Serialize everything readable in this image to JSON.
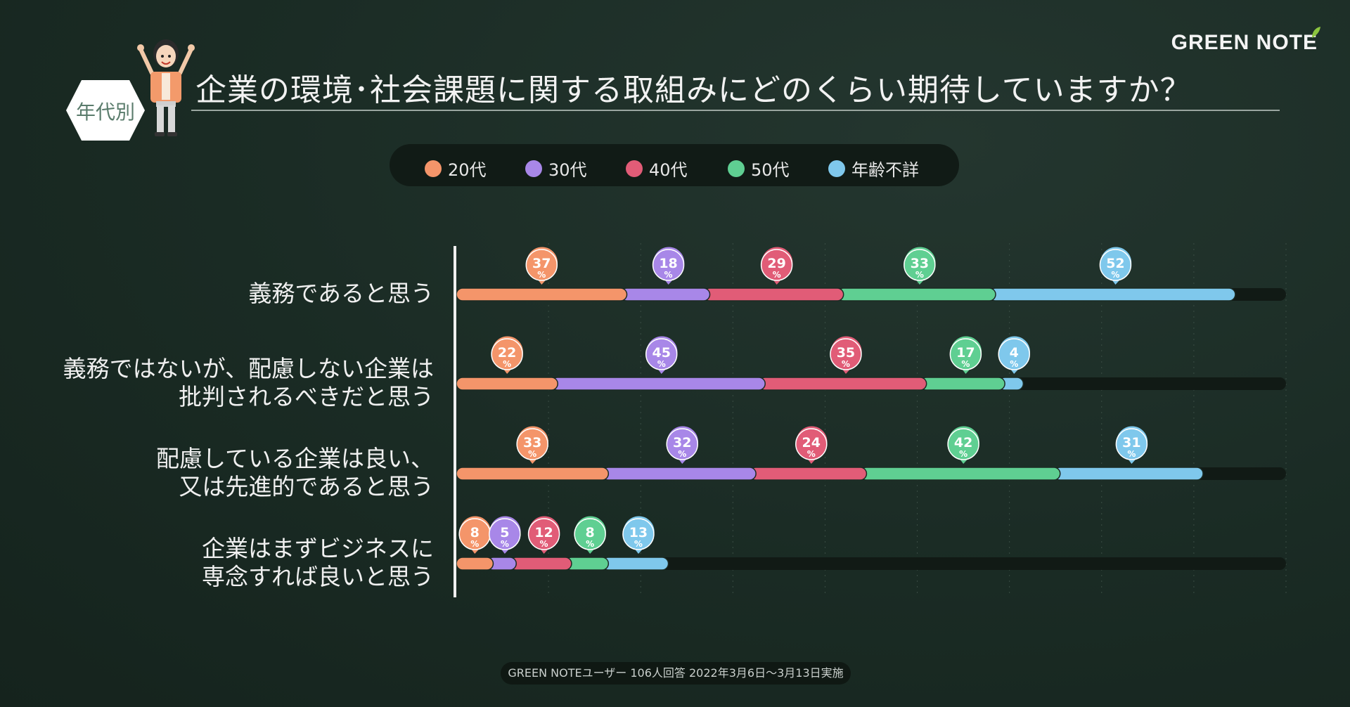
{
  "header": {
    "logo": "GREEN NOTE",
    "category_badge": "年代別",
    "title": "企業の環境･社会課題に関する取組みにどのくらい期待していますか？"
  },
  "legend": [
    {
      "label": "20代",
      "color": "#f4956a"
    },
    {
      "label": "30代",
      "color": "#a887e8"
    },
    {
      "label": "40代",
      "color": "#e15c77"
    },
    {
      "label": "50代",
      "color": "#5fcf92"
    },
    {
      "label": "年齢不詳",
      "color": "#7fc8ec"
    }
  ],
  "chart_data": {
    "type": "bar",
    "stacked": true,
    "orientation": "horizontal",
    "unit": "%",
    "categories": [
      [
        "義務であると思う"
      ],
      [
        "義務ではないが、配慮しない企業は",
        "批判されるべきだと思う"
      ],
      [
        "配慮している企業は良い、",
        "又は先進的であると思う"
      ],
      [
        "企業はまずビジネスに",
        "専念すれば良いと思う"
      ]
    ],
    "series": [
      {
        "name": "20代",
        "color": "#f4956a",
        "values": [
          37,
          22,
          33,
          8
        ]
      },
      {
        "name": "30代",
        "color": "#a887e8",
        "values": [
          18,
          45,
          32,
          5
        ]
      },
      {
        "name": "40代",
        "color": "#e15c77",
        "values": [
          29,
          35,
          24,
          12
        ]
      },
      {
        "name": "50代",
        "color": "#5fcf92",
        "values": [
          33,
          17,
          42,
          8
        ]
      },
      {
        "name": "年齢不詳",
        "color": "#7fc8ec",
        "values": [
          52,
          4,
          31,
          13
        ]
      }
    ],
    "xlim": [
      0,
      180
    ],
    "grid": true
  },
  "footer": {
    "note": "GREEN NOTEユーザー 106人回答 2022年3月6日〜3月13日実施"
  }
}
